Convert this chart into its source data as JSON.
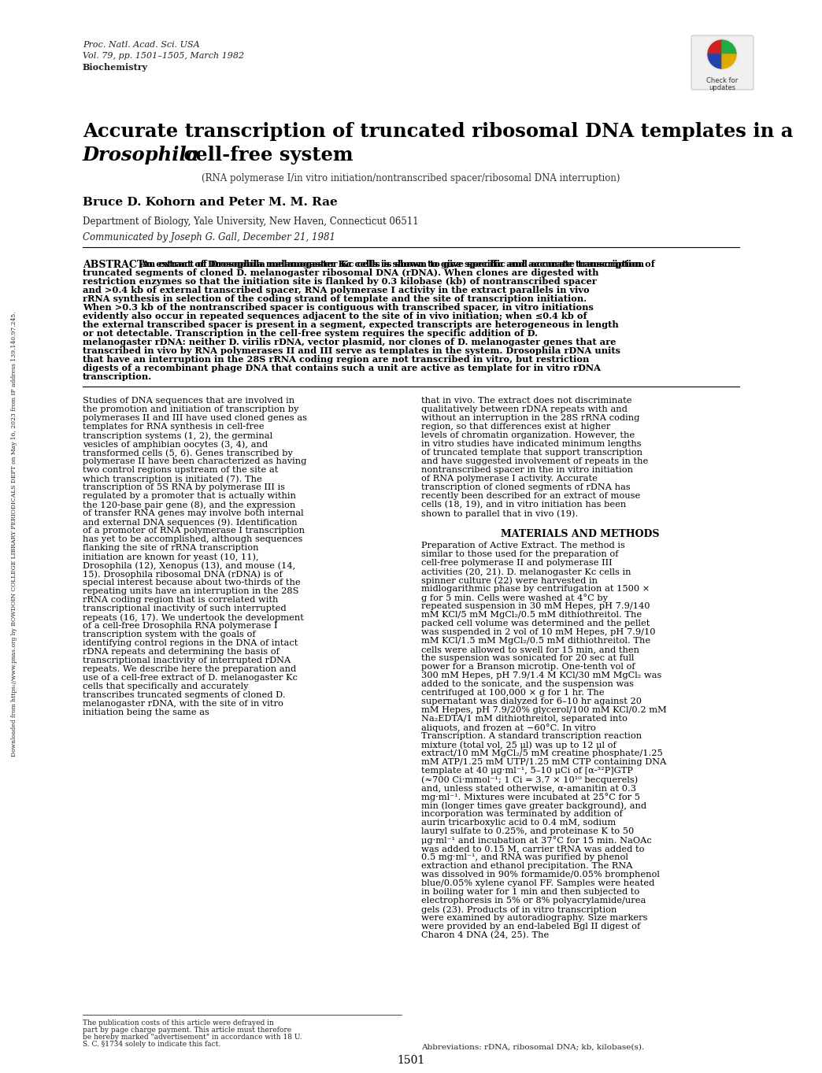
{
  "background_color": "#ffffff",
  "page_width": 10.24,
  "page_height": 13.36,
  "journal_line1": "Proc. Natl. Acad. Sci. USA",
  "journal_line2": "Vol. 79, pp. 1501–1505, March 1982",
  "journal_line3": "Biochemistry",
  "title_line1": "Accurate transcription of truncated ribosomal DNA templates in a",
  "title_line2_italic": "Drosophila",
  "title_line2_rest": " cell-free system",
  "subtitle": "(RNA polymerase I/in vitro initiation/nontranscribed spacer/ribosomal DNA interruption)",
  "authors": "Bruce D. Kohorn and Peter M. M. Rae",
  "affiliation": "Department of Biology, Yale University, New Haven, Connecticut 06511",
  "communicated": "Communicated by Joseph G. Gall, December 21, 1981",
  "abstract_label": "ABSTRACT",
  "abstract_text": "An extract of Drosophila melanogaster Kc cells is shown to give specific and accurate transcription of truncated segments of cloned D. melanogaster ribosomal DNA (rDNA). When clones are digested with restriction enzymes so that the initiation site is flanked by 0.3 kilobase (kb) of nontranscribed spacer and >0.4 kb of external transcribed spacer, RNA polymerase I activity in the extract parallels in vivo rRNA synthesis in selection of the coding strand of template and the site of transcription initiation. When >0.3 kb of the nontranscribed spacer is contiguous with transcribed spacer, in vitro initiations evidently also occur in repeated sequences adjacent to the site of in vivo initiation; when ≤0.4 kb of the external transcribed spacer is present in a segment, expected transcripts are heterogeneous in length or not detectable. Transcription in the cell-free system requires the specific addition of D. melanogaster rDNA: neither D. virilis rDNA, vector plasmid, nor clones of D. melanogaster genes that are transcribed in vivo by RNA polymerases II and III serve as templates in the system. Drosophila rDNA units that have an interruption in the 28S rRNA coding region are not transcribed in vitro, but restriction digests of a recombinant phage DNA that contains such a unit are active as template for in vitro rDNA transcription.",
  "left_col_text": "Studies of DNA sequences that are involved in the promotion and initiation of transcription by polymerases II and III have used cloned genes as templates for RNA synthesis in cell-free transcription systems (1, 2), the germinal vesicles of amphibian oocytes (3, 4), and transformed cells (5, 6). Genes transcribed by polymerase II have been characterized as having two control regions upstream of the site at which transcription is initiated (7). The transcription of 5S RNA by polymerase III is regulated by a promoter that is actually within the 120-base pair gene (8), and the expression of transfer RNA genes may involve both internal and external DNA sequences (9). Identification of a promoter of RNA polymerase I transcription has yet to be accomplished, although sequences flanking the site of rRNA transcription initiation are known for yeast (10, 11), Drosophila (12), Xenopus (13), and mouse (14, 15).\n    Drosophila ribosomal DNA (rDNA) is of special interest because about two-thirds of the repeating units have an interruption in the 28S rRNA coding region that is correlated with transcriptional inactivity of such interrupted repeats (16, 17). We undertook the development of a cell-free Drosophila RNA polymerase I transcription system with the goals of identifying control regions in the DNA of intact rDNA repeats and determining the basis of transcriptional inactivity of interrupted rDNA repeats. We describe here the preparation and use of a cell-free extract of D. melanogaster Kc cells that specifically and accurately transcribes truncated segments of cloned D. melanogaster rDNA, with the site of in vitro initiation being the same as",
  "right_col_intro": "that in vivo. The extract does not discriminate qualitatively between rDNA repeats with and without an interruption in the 28S rRNA coding region, so that differences exist at higher levels of chromatin organization. However, the in vitro studies have indicated minimum lengths of truncated template that support transcription and have suggested involvement of repeats in the nontranscribed spacer in the in vitro initiation of RNA polymerase I activity. Accurate transcription of cloned segments of rDNA has recently been described for an extract of mouse cells (18, 19), and in vitro initiation has been shown to parallel that in vivo (19).",
  "materials_header": "MATERIALS AND METHODS",
  "materials_text": "Preparation of Active Extract. The method is similar to those used for the preparation of cell-free polymerase II and polymerase III activities (20, 21). D. melanogaster Kc cells in spinner culture (22) were harvested in midlogarithmic phase by centrifugation at 1500 × g for 5 min. Cells were washed at 4°C by repeated suspension in 30 mM Hepes, pH 7.9/140 mM KCl/5 mM MgCl₂/0.5 mM dithiothreitol. The packed cell volume was determined and the pellet was suspended in 2 vol of 10 mM Hepes, pH 7.9/10 mM KCl/1.5 mM MgCl₂/0.5 mM dithiothreitol. The cells were allowed to swell for 15 min, and then the suspension was sonicated for 20 sec at full power for a Branson microtip. One-tenth vol of 300 mM Hepes, pH 7.9/1.4 M KCl/30 mM MgCl₂ was added to the sonicate, and the suspension was centrifuged at 100,000 × g for 1 hr. The supernatant was dialyzed for 6–10 hr against 20 mM Hepes, pH 7.9/20% glycerol/100 mM KCl/0.2 mM Na₂EDTA/1 mM dithiothreitol, separated into aliquots, and frozen at −60°C.\n    In vitro Transcription. A standard transcription reaction mixture (total vol, 25 μl) was up to 12 μl of extract/10 mM MgCl₂/5 mM creatine phosphate/1.25 mM ATP/1.25 mM UTP/1.25 mM CTP containing DNA template at 40 μg·ml⁻¹, 5–10 μCi of [α-³²P]GTP (≈700 Ci·mmol⁻¹; 1 Ci = 3.7 × 10¹⁰ becquerels) and, unless stated otherwise, α-amanitin at 0.3 mg·ml⁻¹. Mixtures were incubated at 25°C for 5 min (longer times gave greater background), and incorporation was terminated by addition of aurin tricarboxylic acid to 0.4 mM, sodium lauryl sulfate to 0.25%, and proteinase K to 50 μg·ml⁻¹ and incubation at 37°C for 15 min. NaOAc was added to 0.15 M, carrier tRNA was added to 0.5 mg·ml⁻¹, and RNA was purified by phenol extraction and ethanol precipitation. The RNA was dissolved in 90% formamide/0.05% bromphenol blue/0.05% xylene cyanol FF. Samples were heated in boiling water for 1 min and then subjected to electrophoresis in 5% or 8% polyacrylamide/urea gels (23). Products of in vitro transcription were examined by autoradiography. Size markers were provided by an end-labeled Bgl II digest of Charon 4 DNA (24, 25). The",
  "footnote": "The publication costs of this article were defrayed in part by page charge payment. This article must therefore be hereby marked \"advertisement\" in accordance with 18 U. S. C. §1734 solely to indicate this fact.",
  "abbreviations": "Abbreviations: rDNA, ribosomal DNA; kb, kilobase(s).",
  "page_number": "1501",
  "left_margin_text": "Downloaded from https://www.pnas.org by BOWDOIN COLLEGE LIBRARY PERIODICALS DEPT on May 16, 2023 from IP address 139.140.97.245."
}
